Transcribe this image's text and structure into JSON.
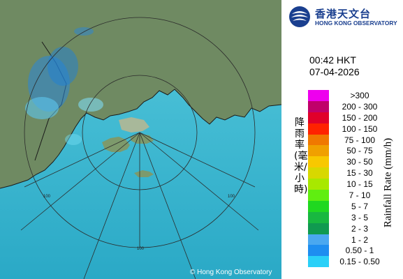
{
  "map": {
    "copyright": "© Hong Kong Observatory",
    "range_ring_labels": [
      "100",
      "100",
      "100"
    ],
    "colors": {
      "sea": "#2fb5cf",
      "land": "#6f8a62",
      "rain_light": "#6fd9f0",
      "rain_heavy": "#1f7fd6"
    }
  },
  "header": {
    "org_name_zh": "香港天文台",
    "org_name_en": "HONG KONG OBSERVATORY",
    "logo_icon": "hko-logo-icon"
  },
  "timestamp": {
    "time": "00:42 HKT",
    "date": "07-04-2026"
  },
  "legend": {
    "title_zh": "降雨率(毫米/小時)",
    "title_en": "Rainfall Rate (mm/h)",
    "items": [
      {
        "label": ">300",
        "color": "#ee00ee"
      },
      {
        "label": "200 - 300",
        "color": "#c0006a"
      },
      {
        "label": "150 - 200",
        "color": "#e0002a"
      },
      {
        "label": "100 - 150",
        "color": "#ff2200"
      },
      {
        "label": "75 - 100",
        "color": "#f07800"
      },
      {
        "label": "50 - 75",
        "color": "#f0a000"
      },
      {
        "label": "30 - 50",
        "color": "#f8c800"
      },
      {
        "label": "15 - 30",
        "color": "#d8d800"
      },
      {
        "label": "10 - 15",
        "color": "#a8e800"
      },
      {
        "label": "7 - 10",
        "color": "#60ee10"
      },
      {
        "label": "5 - 7",
        "color": "#20d820"
      },
      {
        "label": "3 - 5",
        "color": "#18b840"
      },
      {
        "label": "2 - 3",
        "color": "#109a50"
      },
      {
        "label": "1 - 2",
        "color": "#4aa8f0"
      },
      {
        "label": "0.50 - 1",
        "color": "#1e8ef0"
      },
      {
        "label": "0.15 - 0.50",
        "color": "#2ad0f8"
      }
    ]
  }
}
